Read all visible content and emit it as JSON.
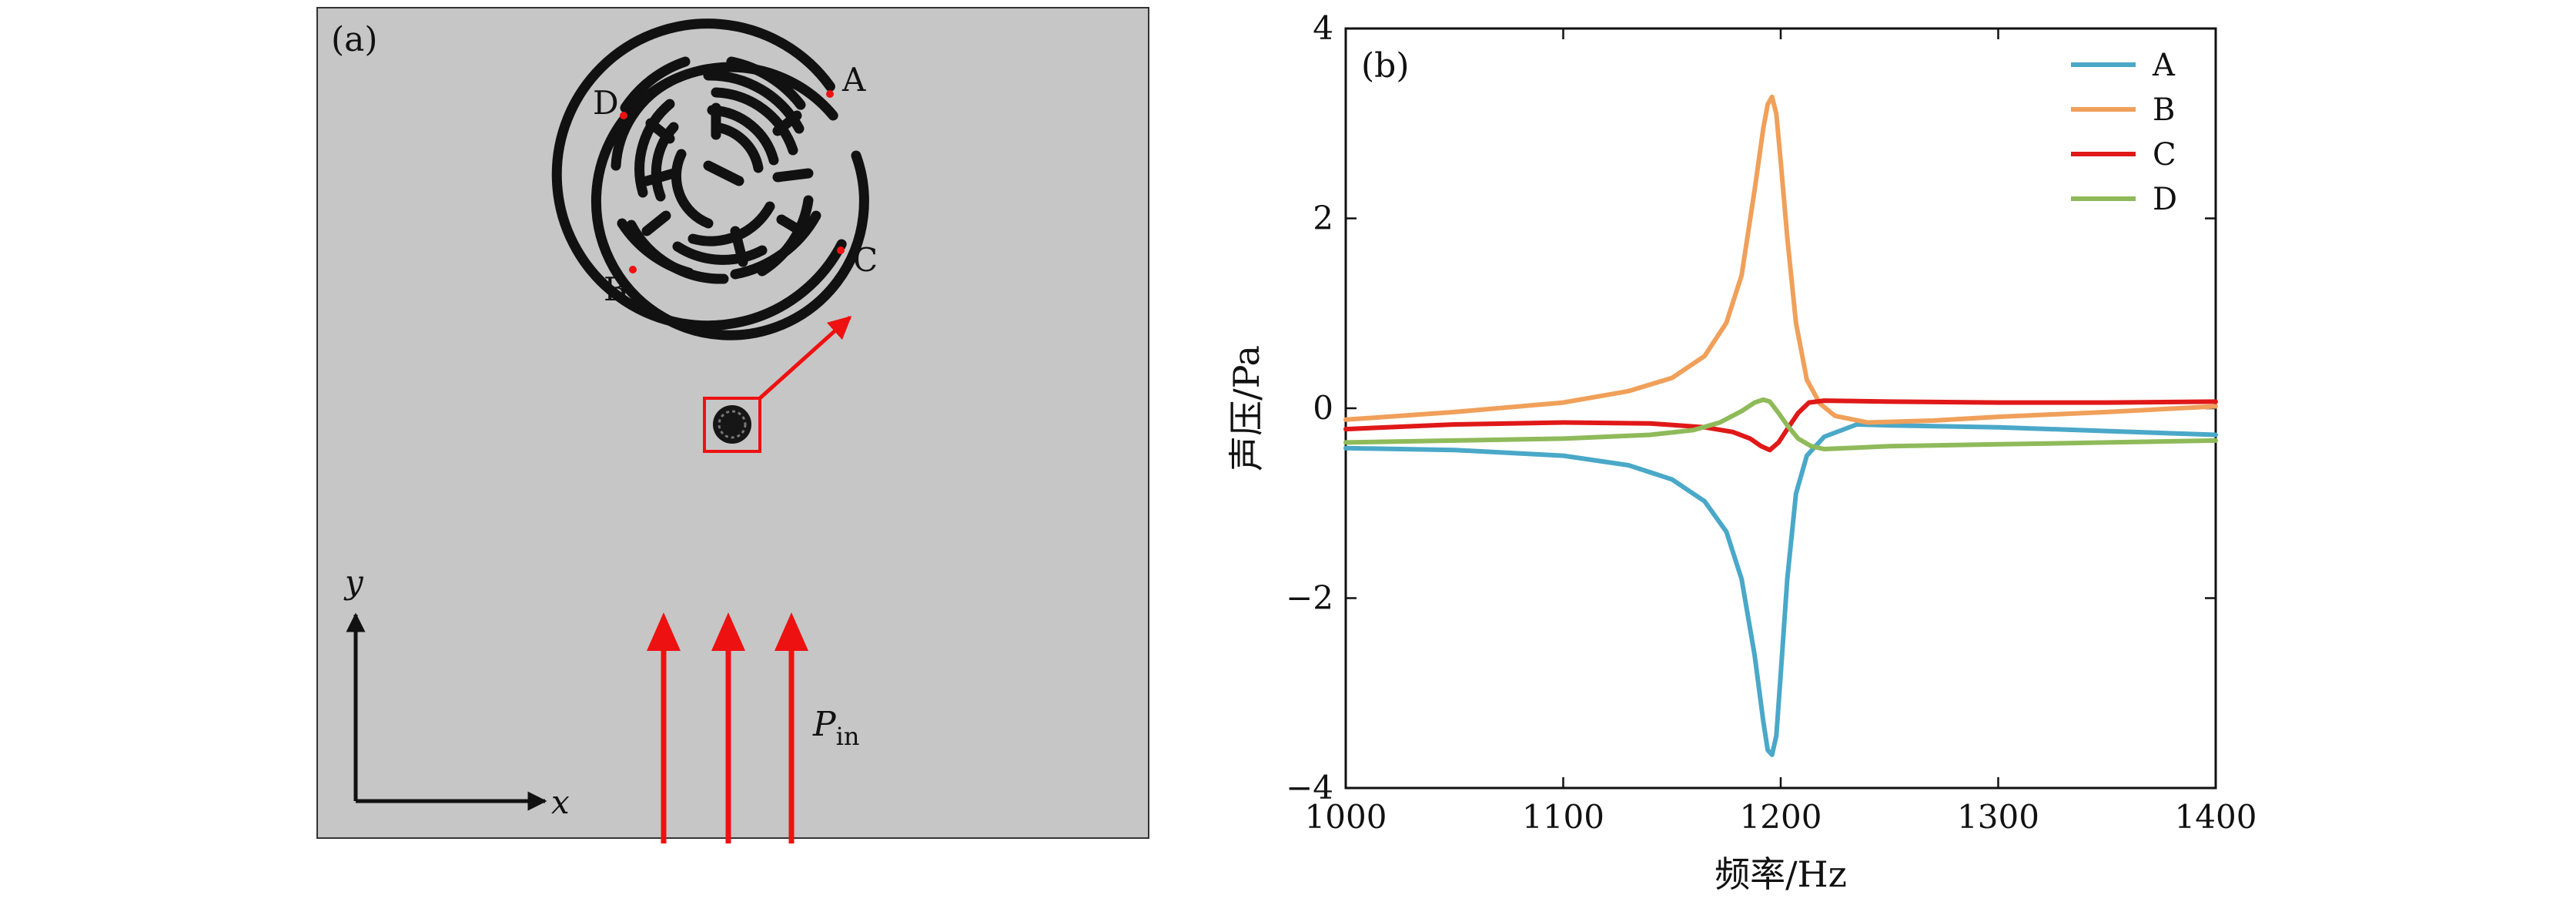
{
  "panel_a": {
    "label": "(a)",
    "points": [
      {
        "id": "A",
        "label": "A"
      },
      {
        "id": "B",
        "label": "B"
      },
      {
        "id": "C",
        "label": "C"
      },
      {
        "id": "D",
        "label": "D"
      }
    ],
    "axes": {
      "x_label": "x",
      "y_label": "y"
    },
    "incident_label": "P",
    "incident_subscript": "in",
    "colors": {
      "background": "#c6c6c6",
      "structure": "#111111",
      "arrow": "#ee1111",
      "point": "#ee1111"
    }
  },
  "chart_data": {
    "type": "line",
    "panel_label": "(b)",
    "xlabel": "频率/Hz",
    "ylabel": "声压/Pa",
    "xlim": [
      1000,
      1400
    ],
    "ylim": [
      -4,
      4
    ],
    "xticks": [
      1000,
      1100,
      1200,
      1300,
      1400
    ],
    "yticks": [
      -4,
      -2,
      0,
      2,
      4
    ],
    "ytick_labels": [
      "−4",
      "−2",
      "0",
      "2",
      "4"
    ],
    "grid": false,
    "legend_position": "top-right",
    "series": [
      {
        "name": "A",
        "color": "#4aa8c8",
        "x": [
          1000,
          1050,
          1100,
          1130,
          1150,
          1165,
          1175,
          1182,
          1188,
          1192,
          1194,
          1196,
          1198,
          1200,
          1203,
          1207,
          1212,
          1220,
          1235,
          1250,
          1300,
          1350,
          1400
        ],
        "y": [
          -0.42,
          -0.44,
          -0.5,
          -0.6,
          -0.75,
          -0.98,
          -1.3,
          -1.8,
          -2.6,
          -3.3,
          -3.6,
          -3.65,
          -3.45,
          -2.8,
          -1.8,
          -0.9,
          -0.5,
          -0.3,
          -0.17,
          -0.18,
          -0.2,
          -0.24,
          -0.28
        ]
      },
      {
        "name": "B",
        "color": "#f0a05a",
        "x": [
          1000,
          1050,
          1100,
          1130,
          1150,
          1165,
          1175,
          1182,
          1188,
          1192,
          1194,
          1196,
          1198,
          1200,
          1203,
          1207,
          1212,
          1218,
          1225,
          1240,
          1270,
          1300,
          1350,
          1400
        ],
        "y": [
          -0.12,
          -0.04,
          0.06,
          0.18,
          0.32,
          0.55,
          0.9,
          1.4,
          2.3,
          2.95,
          3.2,
          3.28,
          3.1,
          2.6,
          1.8,
          0.9,
          0.3,
          0.05,
          -0.08,
          -0.15,
          -0.13,
          -0.09,
          -0.04,
          0.02
        ]
      },
      {
        "name": "C",
        "color": "#e01818",
        "x": [
          1000,
          1050,
          1100,
          1140,
          1165,
          1178,
          1186,
          1191,
          1195,
          1199,
          1203,
          1208,
          1213,
          1220,
          1250,
          1300,
          1350,
          1400
        ],
        "y": [
          -0.22,
          -0.17,
          -0.15,
          -0.16,
          -0.2,
          -0.25,
          -0.32,
          -0.4,
          -0.44,
          -0.36,
          -0.22,
          -0.05,
          0.06,
          0.08,
          0.07,
          0.06,
          0.06,
          0.07
        ]
      },
      {
        "name": "D",
        "color": "#8fba5a",
        "x": [
          1000,
          1050,
          1100,
          1140,
          1160,
          1172,
          1182,
          1188,
          1192,
          1195,
          1199,
          1203,
          1208,
          1214,
          1220,
          1230,
          1250,
          1300,
          1350,
          1400
        ],
        "y": [
          -0.36,
          -0.34,
          -0.32,
          -0.28,
          -0.23,
          -0.15,
          -0.03,
          0.06,
          0.09,
          0.07,
          -0.05,
          -0.18,
          -0.32,
          -0.4,
          -0.43,
          -0.42,
          -0.4,
          -0.38,
          -0.36,
          -0.34
        ]
      }
    ]
  }
}
